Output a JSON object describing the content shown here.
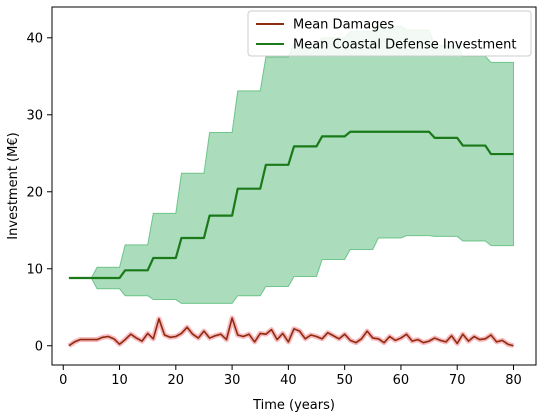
{
  "chart_data": {
    "type": "line",
    "xlabel": "Time (years)",
    "ylabel": "Investment (M€)",
    "xlim": [
      -2,
      84
    ],
    "ylim": [
      -2.5,
      44
    ],
    "xticks": [
      0,
      10,
      20,
      30,
      40,
      50,
      60,
      70,
      80
    ],
    "yticks": [
      0,
      10,
      20,
      30,
      40
    ],
    "grid": false,
    "legend_position": "top-right",
    "series": [
      {
        "name": "Mean Damages",
        "color": "#8b2d0e",
        "x": [
          1,
          2,
          3,
          4,
          5,
          6,
          7,
          8,
          9,
          10,
          11,
          12,
          13,
          14,
          15,
          16,
          17,
          18,
          19,
          20,
          21,
          22,
          23,
          24,
          25,
          26,
          27,
          28,
          29,
          30,
          31,
          32,
          33,
          34,
          35,
          36,
          37,
          38,
          39,
          40,
          41,
          42,
          43,
          44,
          45,
          46,
          47,
          48,
          49,
          50,
          51,
          52,
          53,
          54,
          55,
          56,
          57,
          58,
          59,
          60,
          61,
          62,
          63,
          64,
          65,
          66,
          67,
          68,
          69,
          70,
          71,
          72,
          73,
          74,
          75,
          76,
          77,
          78,
          79,
          80
        ],
        "y": [
          0.0,
          0.5,
          0.8,
          0.8,
          0.8,
          0.8,
          1.1,
          1.2,
          0.9,
          0.2,
          0.8,
          1.5,
          1.0,
          0.6,
          1.6,
          0.9,
          3.5,
          1.4,
          1.1,
          1.2,
          1.6,
          2.4,
          1.5,
          1.0,
          1.9,
          1.0,
          1.3,
          1.5,
          0.8,
          3.6,
          1.4,
          1.2,
          1.5,
          0.5,
          1.6,
          1.5,
          2.1,
          0.8,
          1.6,
          0.5,
          2.2,
          1.9,
          0.9,
          1.4,
          1.2,
          0.9,
          1.7,
          1.3,
          0.9,
          1.5,
          0.7,
          0.4,
          0.9,
          1.9,
          1.0,
          0.9,
          0.4,
          1.2,
          0.7,
          1.0,
          1.5,
          0.6,
          0.8,
          0.4,
          0.6,
          1.0,
          0.7,
          0.5,
          1.3,
          0.3,
          1.5,
          0.6,
          1.2,
          0.8,
          0.9,
          1.4,
          0.5,
          0.7,
          0.2,
          0.0
        ]
      },
      {
        "name": "Mean Coastal Defense Investment",
        "color": "#1a7a1a",
        "x": [
          1,
          2,
          3,
          4,
          5,
          6,
          7,
          8,
          9,
          10,
          11,
          12,
          13,
          14,
          15,
          16,
          17,
          18,
          19,
          20,
          21,
          22,
          23,
          24,
          25,
          26,
          27,
          28,
          29,
          30,
          31,
          32,
          33,
          34,
          35,
          36,
          37,
          38,
          39,
          40,
          41,
          42,
          43,
          44,
          45,
          46,
          47,
          48,
          49,
          50,
          51,
          52,
          53,
          54,
          55,
          56,
          57,
          58,
          59,
          60,
          61,
          62,
          63,
          64,
          65,
          66,
          67,
          68,
          69,
          70,
          71,
          72,
          73,
          74,
          75,
          76,
          77,
          78,
          79,
          80
        ],
        "y": [
          8.8,
          8.8,
          8.8,
          8.8,
          8.8,
          8.8,
          8.8,
          8.8,
          8.8,
          8.8,
          9.8,
          9.8,
          9.8,
          9.8,
          9.8,
          11.4,
          11.4,
          11.4,
          11.4,
          11.4,
          14.0,
          14.0,
          14.0,
          14.0,
          14.0,
          16.9,
          16.9,
          16.9,
          16.9,
          16.9,
          20.4,
          20.4,
          20.4,
          20.4,
          20.4,
          23.5,
          23.5,
          23.5,
          23.5,
          23.5,
          25.9,
          25.9,
          25.9,
          25.9,
          25.9,
          27.2,
          27.2,
          27.2,
          27.2,
          27.2,
          27.8,
          27.8,
          27.8,
          27.8,
          27.8,
          27.8,
          27.8,
          27.8,
          27.8,
          27.8,
          27.8,
          27.8,
          27.8,
          27.8,
          27.8,
          27.0,
          27.0,
          27.0,
          27.0,
          27.0,
          26.0,
          26.0,
          26.0,
          26.0,
          26.0,
          24.9,
          24.9,
          24.9,
          24.9,
          24.9
        ]
      }
    ],
    "band": {
      "color": "#44b36a",
      "opacity": 0.45,
      "x": [
        1,
        5,
        6,
        10,
        11,
        15,
        16,
        20,
        21,
        25,
        26,
        30,
        31,
        35,
        36,
        40,
        41,
        45,
        46,
        50,
        51,
        55,
        56,
        60,
        61,
        65,
        66,
        70,
        71,
        75,
        76,
        80
      ],
      "lower": [
        8.8,
        8.8,
        7.4,
        7.4,
        6.5,
        6.5,
        6.0,
        6.0,
        5.5,
        5.5,
        5.5,
        5.5,
        6.5,
        6.5,
        7.7,
        7.7,
        9.0,
        9.0,
        11.2,
        11.2,
        12.5,
        12.5,
        14.0,
        14.0,
        14.3,
        14.3,
        14.2,
        14.2,
        13.6,
        13.6,
        13.0,
        13.0
      ],
      "upper": [
        8.8,
        8.8,
        10.2,
        10.2,
        13.1,
        13.1,
        17.2,
        17.2,
        22.4,
        22.4,
        27.7,
        27.7,
        33.1,
        33.1,
        37.5,
        37.5,
        39.2,
        39.2,
        40.0,
        40.0,
        40.8,
        40.8,
        41.5,
        41.5,
        41.0,
        41.0,
        39.0,
        39.0,
        37.6,
        37.6,
        36.8,
        36.8
      ]
    },
    "damage_shadow": {
      "color": "#ee3344",
      "opacity": 0.35
    }
  }
}
